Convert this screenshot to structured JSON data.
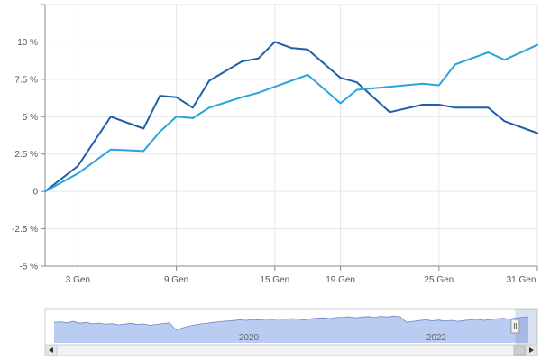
{
  "chart_data": {
    "type": "line",
    "title": "",
    "xlabel": "",
    "ylabel": "",
    "x_tick_labels": [
      "3 Gen",
      "9 Gen",
      "15 Gen",
      "19 Gen",
      "25 Gen",
      "31 Gen"
    ],
    "y_tick_labels": [
      "10 %",
      "7.5 %",
      "5 %",
      "2.5 %",
      "0",
      "-2.5 %",
      "-5 %"
    ],
    "y_ticks": [
      10,
      7.5,
      5,
      2.5,
      0,
      -2.5,
      -5
    ],
    "ylim": [
      -5,
      12.5
    ],
    "grid": true,
    "legend": "none",
    "x_days": [
      1,
      3,
      5,
      7,
      8,
      9,
      10,
      11,
      13,
      14,
      15,
      16,
      17,
      19,
      20,
      22,
      24,
      25,
      26,
      28,
      29,
      31
    ],
    "series": [
      {
        "color": "#1f5fa8",
        "values": [
          0,
          1.7,
          5.0,
          4.2,
          6.4,
          6.3,
          5.6,
          7.4,
          8.7,
          8.9,
          10.0,
          9.6,
          9.5,
          7.6,
          7.3,
          5.3,
          5.8,
          5.8,
          5.6,
          5.6,
          4.7,
          3.9
        ]
      },
      {
        "color": "#2aa3dc",
        "values": [
          0,
          1.2,
          2.8,
          2.7,
          4.0,
          5.0,
          4.9,
          5.6,
          6.3,
          6.6,
          7.0,
          7.4,
          7.8,
          5.9,
          6.8,
          7.0,
          7.2,
          7.1,
          8.5,
          9.3,
          8.8,
          9.8
        ]
      }
    ]
  },
  "navigator": {
    "year_labels": [
      "2020",
      "2022"
    ],
    "series_color": "#b3c6f0",
    "window_fraction": [
      0.955,
      1.0
    ]
  }
}
